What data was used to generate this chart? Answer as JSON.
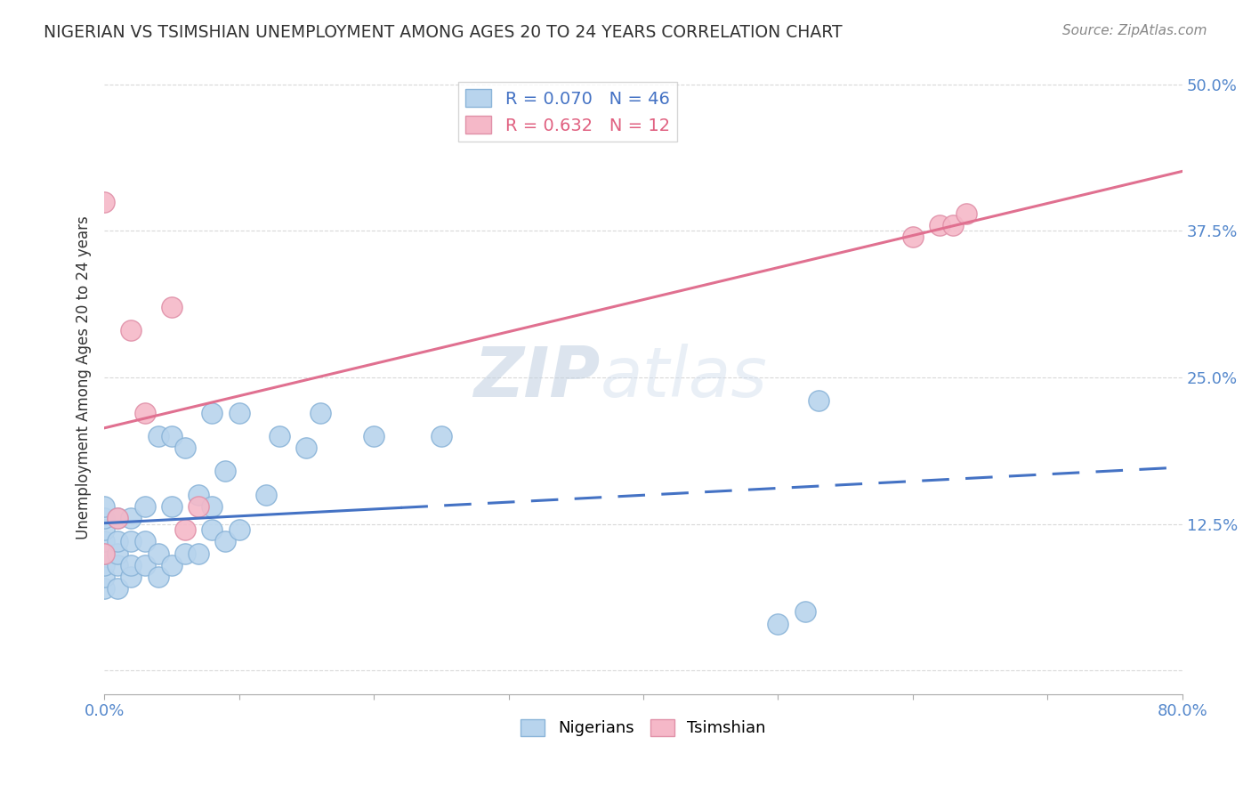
{
  "title": "NIGERIAN VS TSIMSHIAN UNEMPLOYMENT AMONG AGES 20 TO 24 YEARS CORRELATION CHART",
  "source": "Source: ZipAtlas.com",
  "ylabel": "Unemployment Among Ages 20 to 24 years",
  "xlim": [
    0.0,
    0.8
  ],
  "ylim": [
    -0.02,
    0.52
  ],
  "xticks": [
    0.0,
    0.1,
    0.2,
    0.3,
    0.4,
    0.5,
    0.6,
    0.7,
    0.8
  ],
  "yticks": [
    0.0,
    0.125,
    0.25,
    0.375,
    0.5
  ],
  "yticklabels": [
    "",
    "12.5%",
    "25.0%",
    "37.5%",
    "50.0%"
  ],
  "nigerian_R": 0.07,
  "nigerian_N": 46,
  "tsimshian_R": 0.632,
  "tsimshian_N": 12,
  "nigerian_color": "#b8d4ed",
  "tsimshian_color": "#f5b8c8",
  "nigerian_line_color": "#4472c4",
  "tsimshian_line_color": "#e07090",
  "nigerian_x": [
    0.0,
    0.0,
    0.0,
    0.0,
    0.0,
    0.0,
    0.0,
    0.0,
    0.01,
    0.01,
    0.01,
    0.01,
    0.01,
    0.02,
    0.02,
    0.02,
    0.02,
    0.03,
    0.03,
    0.03,
    0.04,
    0.04,
    0.04,
    0.05,
    0.05,
    0.05,
    0.06,
    0.06,
    0.07,
    0.07,
    0.08,
    0.08,
    0.08,
    0.09,
    0.09,
    0.1,
    0.1,
    0.12,
    0.13,
    0.15,
    0.16,
    0.2,
    0.25,
    0.5,
    0.52,
    0.53
  ],
  "nigerian_y": [
    0.07,
    0.08,
    0.09,
    0.1,
    0.11,
    0.12,
    0.13,
    0.14,
    0.07,
    0.09,
    0.1,
    0.11,
    0.13,
    0.08,
    0.09,
    0.11,
    0.13,
    0.09,
    0.11,
    0.14,
    0.08,
    0.1,
    0.2,
    0.09,
    0.14,
    0.2,
    0.1,
    0.19,
    0.1,
    0.15,
    0.12,
    0.14,
    0.22,
    0.11,
    0.17,
    0.12,
    0.22,
    0.15,
    0.2,
    0.19,
    0.22,
    0.2,
    0.2,
    0.04,
    0.05,
    0.23
  ],
  "tsimshian_x": [
    0.0,
    0.0,
    0.01,
    0.02,
    0.03,
    0.05,
    0.06,
    0.07,
    0.6,
    0.62,
    0.63,
    0.64
  ],
  "tsimshian_y": [
    0.1,
    0.4,
    0.13,
    0.29,
    0.22,
    0.31,
    0.12,
    0.14,
    0.37,
    0.38,
    0.38,
    0.39
  ],
  "watermark_zip": "ZIP",
  "watermark_atlas": "atlas",
  "background_color": "#ffffff",
  "grid_color": "#d0d0d0"
}
